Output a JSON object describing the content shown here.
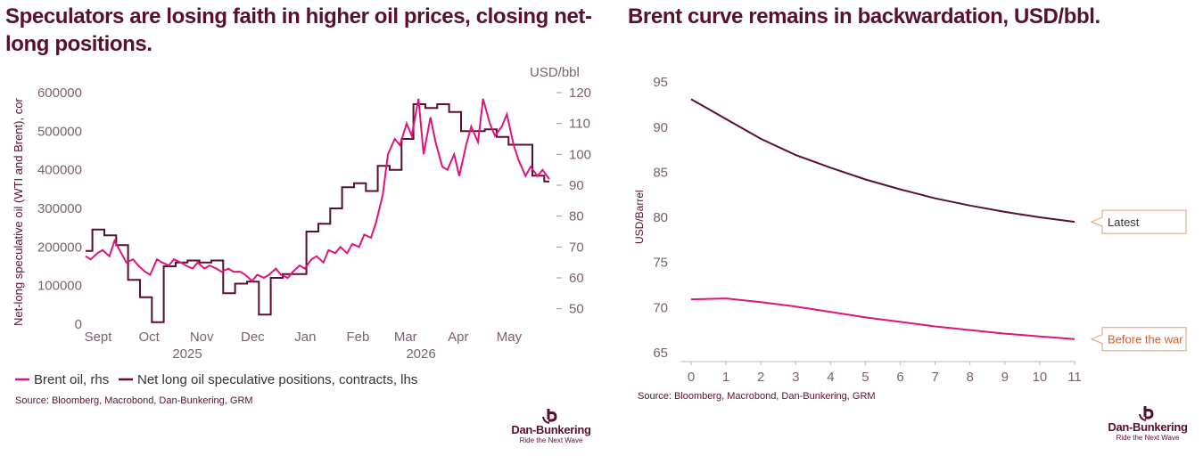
{
  "left": {
    "title": "Speculators are losing faith in higher oil prices, closing net-long positions.",
    "source": "Source: Bloomberg, Macrobond, Dan-Bunkering, GRM",
    "logo": {
      "name": "Dan-Bunkering",
      "tagline": "Ride the Next Wave"
    },
    "colors": {
      "brent": "#e0137b",
      "positions": "#5a0f2e",
      "axis": "#7a6070"
    }
  },
  "right": {
    "title": "Brent curve remains in backwardation, USD/bbl.",
    "source": "Source: Bloomberg, Macrobond, Dan-Bunkering, GRM",
    "logo": {
      "name": "Dan-Bunkering",
      "tagline": "Ride the Next Wave"
    },
    "colors": {
      "latest": "#5a0f2e",
      "before_war": "#e0137b",
      "before_war_label": "#e05a1a"
    }
  },
  "chart_data": [
    {
      "type": "line",
      "ylabel": "Net-long speculative oil (WTI and Brent), cor",
      "ylabel_right": "USD/bbl",
      "x_ticks": [
        "Sept",
        "Oct",
        "Nov",
        "Dec",
        "Jan",
        "Feb",
        "Mar",
        "Apr",
        "May"
      ],
      "x_years": [
        "2025",
        "2026"
      ],
      "ylim": [
        0,
        600000
      ],
      "y_ticks": [
        0,
        100000,
        200000,
        300000,
        400000,
        500000,
        600000
      ],
      "ylim_right": [
        45,
        120
      ],
      "y_ticks_right": [
        50,
        60,
        70,
        80,
        90,
        100,
        110,
        120
      ],
      "legend_position": "bottom",
      "series": [
        {
          "name": "Brent oil, rhs",
          "axis": "right",
          "x": [
            "2025-09-01",
            "2025-09-04",
            "2025-09-08",
            "2025-09-11",
            "2025-09-15",
            "2025-09-18",
            "2025-09-22",
            "2025-09-25",
            "2025-09-29",
            "2025-10-02",
            "2025-10-06",
            "2025-10-09",
            "2025-10-13",
            "2025-10-16",
            "2025-10-20",
            "2025-10-23",
            "2025-10-27",
            "2025-10-30",
            "2025-11-03",
            "2025-11-06",
            "2025-11-10",
            "2025-11-13",
            "2025-11-17",
            "2025-11-20",
            "2025-11-24",
            "2025-11-27",
            "2025-12-01",
            "2025-12-04",
            "2025-12-08",
            "2025-12-11",
            "2025-12-15",
            "2025-12-18",
            "2025-12-22",
            "2025-12-25",
            "2025-12-29",
            "2026-01-01",
            "2026-01-05",
            "2026-01-08",
            "2026-01-12",
            "2026-01-15",
            "2026-01-19",
            "2026-01-22",
            "2026-01-26",
            "2026-01-29",
            "2026-02-02",
            "2026-02-05",
            "2026-02-09",
            "2026-02-12",
            "2026-02-16",
            "2026-02-19",
            "2026-02-23",
            "2026-02-26",
            "2026-03-02",
            "2026-03-05",
            "2026-03-09",
            "2026-03-12",
            "2026-03-16",
            "2026-03-19",
            "2026-03-23",
            "2026-03-26",
            "2026-03-30",
            "2026-04-02",
            "2026-04-06",
            "2026-04-09",
            "2026-04-13",
            "2026-04-16",
            "2026-04-20",
            "2026-04-23",
            "2026-04-27",
            "2026-04-30",
            "2026-05-04",
            "2026-05-07",
            "2026-05-11",
            "2026-05-14",
            "2026-05-18",
            "2026-05-21",
            "2026-05-25",
            "2026-05-28",
            "2026-06-01"
          ],
          "values": [
            67,
            66,
            68,
            69,
            67,
            72,
            68,
            65,
            66,
            64,
            62,
            61,
            66,
            65,
            64,
            66,
            65,
            64,
            63,
            65,
            63,
            64,
            63,
            62,
            63,
            62,
            62,
            61,
            59,
            61,
            60,
            61,
            63,
            61,
            60,
            62,
            64,
            63,
            66,
            67,
            65,
            69,
            68,
            70,
            68,
            71,
            70,
            74,
            73,
            78,
            87,
            100,
            105,
            103,
            110,
            106,
            118,
            100,
            112,
            104,
            96,
            95,
            100,
            93,
            103,
            109,
            104,
            118,
            110,
            106,
            109,
            113,
            103,
            98,
            93,
            96,
            93,
            95,
            92
          ]
        },
        {
          "name": "Net long oil speculative positions, contracts, lhs",
          "axis": "left",
          "x": [
            "2025-09-01",
            "2025-09-05",
            "2025-09-12",
            "2025-09-19",
            "2025-09-26",
            "2025-10-03",
            "2025-10-10",
            "2025-10-17",
            "2025-10-24",
            "2025-10-31",
            "2025-11-07",
            "2025-11-14",
            "2025-11-21",
            "2025-11-28",
            "2025-12-05",
            "2025-12-12",
            "2025-12-19",
            "2025-12-26",
            "2026-01-02",
            "2026-01-09",
            "2026-01-16",
            "2026-01-23",
            "2026-01-30",
            "2026-02-06",
            "2026-02-13",
            "2026-02-20",
            "2026-02-27",
            "2026-03-06",
            "2026-03-13",
            "2026-03-20",
            "2026-03-27",
            "2026-04-03",
            "2026-04-10",
            "2026-04-17",
            "2026-04-24",
            "2026-05-01",
            "2026-05-08",
            "2026-05-15",
            "2026-05-22",
            "2026-05-29",
            "2026-06-01"
          ],
          "values": [
            190000,
            245000,
            230000,
            205000,
            115000,
            70000,
            5000,
            150000,
            160000,
            165000,
            160000,
            165000,
            80000,
            105000,
            110000,
            25000,
            120000,
            130000,
            130000,
            240000,
            260000,
            300000,
            355000,
            365000,
            345000,
            410000,
            400000,
            480000,
            570000,
            560000,
            570000,
            550000,
            500000,
            500000,
            505000,
            485000,
            465000,
            465000,
            385000,
            370000,
            370000
          ]
        }
      ]
    },
    {
      "type": "line",
      "ylabel": "USD/Barrel",
      "x": [
        0,
        1,
        2,
        3,
        4,
        5,
        6,
        7,
        8,
        9,
        10,
        11
      ],
      "ylim": [
        64,
        96
      ],
      "y_ticks": [
        65,
        70,
        75,
        80,
        85,
        90,
        95
      ],
      "series": [
        {
          "name": "Latest",
          "values": [
            93.1,
            90.9,
            88.7,
            86.9,
            85.5,
            84.2,
            83.1,
            82.1,
            81.3,
            80.6,
            80.0,
            79.5
          ]
        },
        {
          "name": "Before the war",
          "values": [
            70.9,
            71.0,
            70.6,
            70.1,
            69.5,
            68.9,
            68.4,
            67.9,
            67.5,
            67.1,
            66.8,
            66.5
          ]
        }
      ]
    }
  ]
}
